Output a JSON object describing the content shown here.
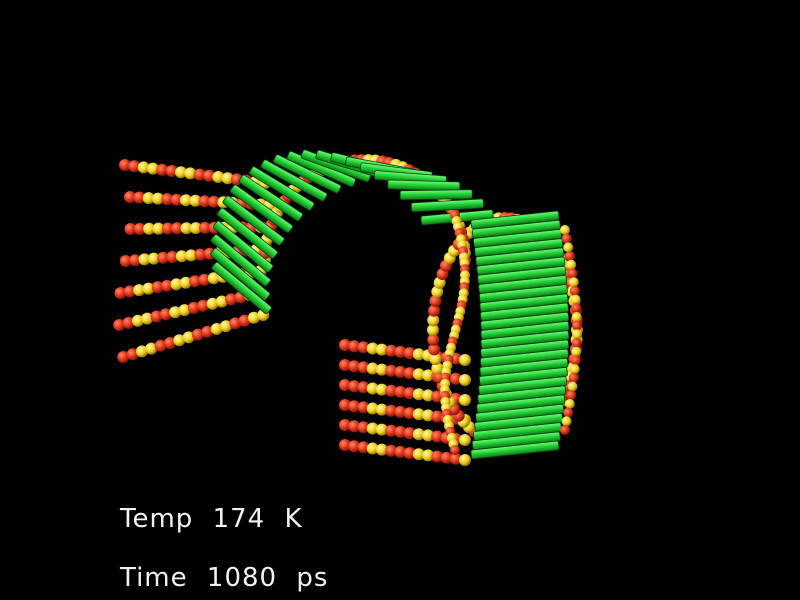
{
  "readouts": {
    "temperature": {
      "label": "Temp",
      "value": "174",
      "unit": "K"
    },
    "time": {
      "label": "Time",
      "value": "1080",
      "unit": "ps"
    }
  },
  "colors": {
    "background": "#000000",
    "ribbon": "#22cc33",
    "ribbon_dark": "#0c7a18",
    "bead_red": "#e0361a",
    "bead_yellow": "#f0d020",
    "text": "#f2f2f2"
  },
  "scene": {
    "description_icon": "molecular-helix-render"
  }
}
